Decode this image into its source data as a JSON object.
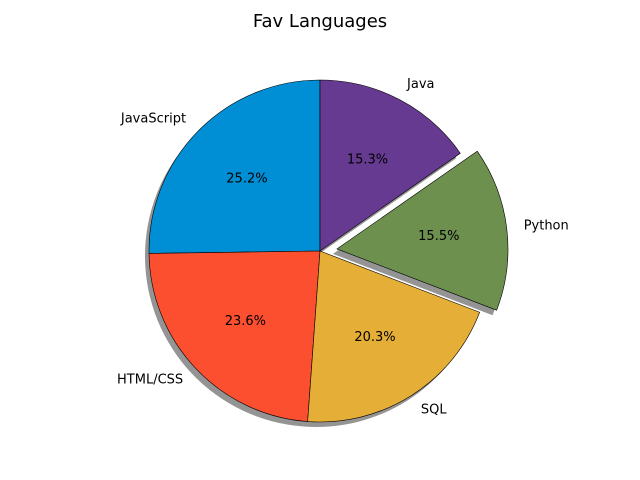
{
  "chart_data": {
    "type": "pie",
    "title": "Fav Languages",
    "slices": [
      {
        "label": "JavaScript",
        "value": 25.2,
        "pct_label": "25.2%",
        "color": "#008fd5"
      },
      {
        "label": "HTML/CSS",
        "value": 23.6,
        "pct_label": "23.6%",
        "color": "#fc4f30"
      },
      {
        "label": "SQL",
        "value": 20.3,
        "pct_label": "20.3%",
        "color": "#e5ae37"
      },
      {
        "label": "Python",
        "value": 15.5,
        "pct_label": "15.5%",
        "color": "#6d904f",
        "exploded": true
      },
      {
        "label": "Java",
        "value": 15.3,
        "pct_label": "15.3%",
        "color": "#663a91"
      }
    ],
    "start_angle_deg": 90,
    "direction": "counterclockwise",
    "shadow": true,
    "edge_color": "#000000"
  }
}
